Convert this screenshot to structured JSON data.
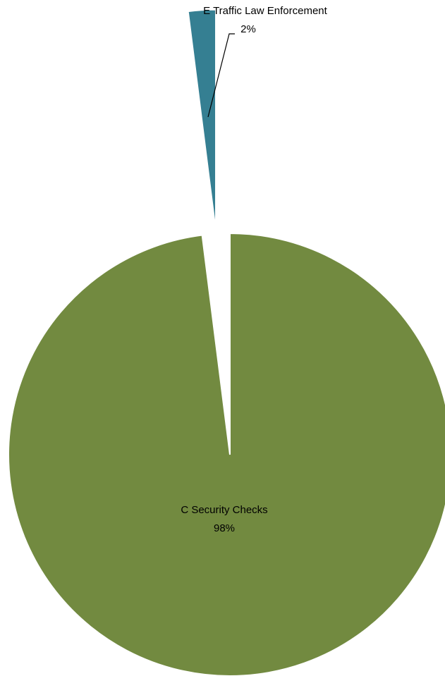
{
  "chart_data": {
    "type": "pie",
    "title": "",
    "start_angle_deg": 0,
    "direction": "clockwise",
    "slices": [
      {
        "label": "E Traffic Law Enforcement",
        "value": 2,
        "percent_label": "2%",
        "color": "#357F92",
        "exploded": true
      },
      {
        "label": "C Security Checks",
        "value": 98,
        "percent_label": "98%",
        "color": "#728A40",
        "exploded": false
      }
    ]
  }
}
